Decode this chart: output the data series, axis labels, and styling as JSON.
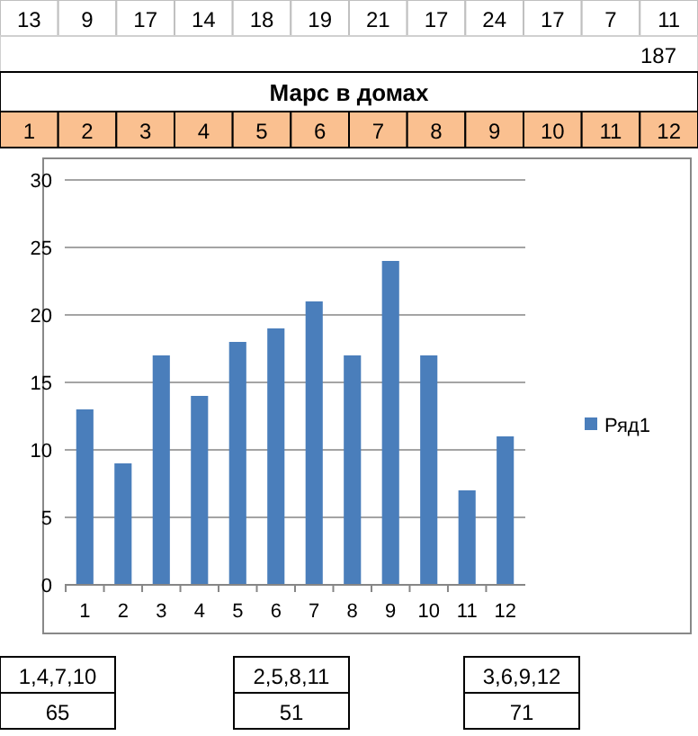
{
  "chart_data": {
    "type": "bar",
    "title": "Марс в домах",
    "categories": [
      "1",
      "2",
      "3",
      "4",
      "5",
      "6",
      "7",
      "8",
      "9",
      "10",
      "11",
      "12"
    ],
    "series": [
      {
        "name": "Ряд1",
        "color": "#4a7ebb",
        "values": [
          13,
          9,
          17,
          14,
          18,
          19,
          21,
          17,
          24,
          17,
          7,
          11
        ]
      }
    ],
    "ylim": [
      0,
      30
    ],
    "yticks": [
      0,
      5,
      10,
      15,
      20,
      25,
      30
    ],
    "grid": "y",
    "legend": "right",
    "annotations": [
      "13",
      "9",
      "17",
      "14",
      "18",
      "19",
      "21",
      "17",
      "24",
      "17",
      "7",
      "11",
      "187",
      "1",
      "2",
      "3",
      "4",
      "5",
      "6",
      "7",
      "8",
      "9",
      "10",
      "11",
      "12",
      "1,4,7,10",
      "65",
      "2,5,8,11",
      "51",
      "3,6,9,12",
      "71"
    ]
  }
}
